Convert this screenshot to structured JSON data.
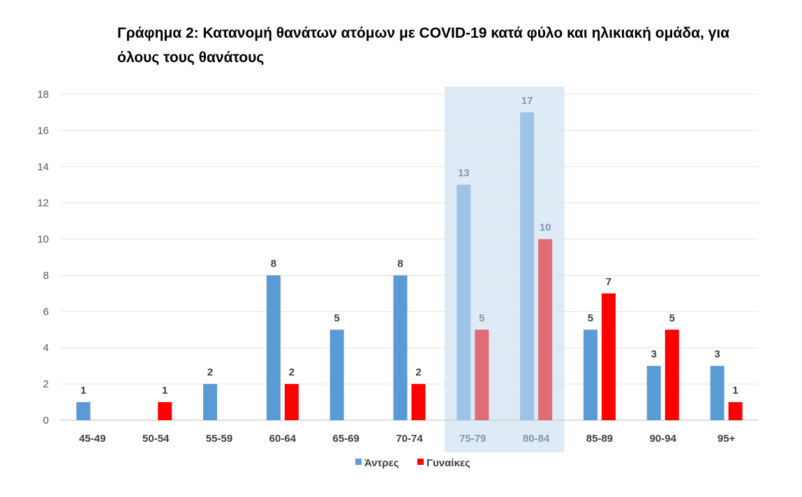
{
  "chart_data": {
    "type": "bar",
    "title": "Γράφημα 2: Κατανομή θανάτων ατόμων με COVID-19 κατά φύλο και ηλικιακή ομάδα, για όλους τους θανάτους",
    "xlabel": "",
    "ylabel": "",
    "categories": [
      "45-49",
      "50-54",
      "55-59",
      "60-64",
      "65-69",
      "70-74",
      "75-79",
      "80-84",
      "85-89",
      "90-94",
      "95+"
    ],
    "series": [
      {
        "name": "Άντρες",
        "color": "#5B9BD5",
        "values": [
          1,
          0,
          2,
          8,
          5,
          8,
          13,
          17,
          5,
          3,
          3
        ]
      },
      {
        "name": "Γυναίκες",
        "color": "#FF0000",
        "values": [
          0,
          1,
          0,
          2,
          0,
          2,
          5,
          10,
          7,
          5,
          1
        ]
      }
    ],
    "highlight": {
      "categories": [
        "75-79",
        "80-84"
      ],
      "band_color": "#DEEBF7",
      "series_colors": [
        "#9DC3E6",
        "#E06C75"
      ],
      "label_color": "#8497B0"
    },
    "ylim": [
      0,
      18
    ],
    "yticks": [
      0,
      2,
      4,
      6,
      8,
      10,
      12,
      14,
      16,
      18
    ],
    "grid": true,
    "legend_position": "bottom"
  }
}
